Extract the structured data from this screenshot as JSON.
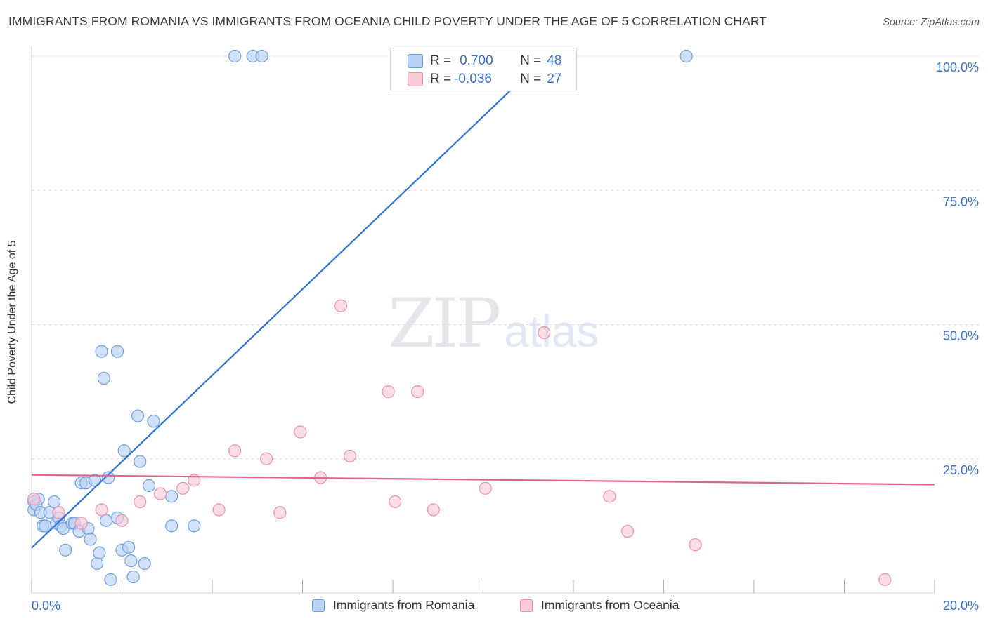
{
  "title": "IMMIGRANTS FROM ROMANIA VS IMMIGRANTS FROM OCEANIA CHILD POVERTY UNDER THE AGE OF 5 CORRELATION CHART",
  "source": "Source: ZipAtlas.com",
  "watermark": {
    "zip": "ZIP",
    "atlas": "atlas"
  },
  "stats": {
    "romania": {
      "r_label": "R =",
      "r_value": "0.700",
      "n_label": "N =",
      "n_value": "48"
    },
    "oceania": {
      "r_label": "R =",
      "r_value": "-0.036",
      "n_label": "N =",
      "n_value": "27"
    }
  },
  "colors": {
    "romania_fill": "#b8d2f4",
    "romania_stroke": "#6f9de0",
    "romania_line": "#2d74d6",
    "oceania_fill": "#f9cbd9",
    "oceania_stroke": "#ee8daf",
    "oceania_line": "#e0638f",
    "tick_text": "#3a72c9",
    "grid": "#d9d9e3"
  },
  "chart_data": {
    "type": "scatter",
    "title": "IMMIGRANTS FROM ROMANIA VS IMMIGRANTS FROM OCEANIA CHILD POVERTY UNDER THE AGE OF 5 CORRELATION CHART",
    "xlabel": "",
    "ylabel": "Child Poverty Under the Age of 5",
    "xlim": [
      0,
      20
    ],
    "ylim": [
      0,
      100
    ],
    "x_tick_labels": [
      "0.0%",
      "20.0%"
    ],
    "y_ticks": [
      25,
      50,
      75,
      100
    ],
    "y_tick_labels": [
      "25.0%",
      "50.0%",
      "75.0%",
      "100.0%"
    ],
    "legend": [
      "Immigrants from Romania",
      "Immigrants from Oceania"
    ],
    "series": [
      {
        "name": "Immigrants from Romania",
        "trend": {
          "x": [
            0,
            11.4
          ],
          "y": [
            8.4,
            100
          ]
        },
        "points": [
          {
            "x": 0.05,
            "y": 17.0
          },
          {
            "x": 0.05,
            "y": 15.5
          },
          {
            "x": 0.1,
            "y": 16.5
          },
          {
            "x": 0.15,
            "y": 17.5
          },
          {
            "x": 0.2,
            "y": 15.0
          },
          {
            "x": 0.25,
            "y": 12.5
          },
          {
            "x": 0.3,
            "y": 12.5
          },
          {
            "x": 0.4,
            "y": 15.0
          },
          {
            "x": 0.5,
            "y": 17.0
          },
          {
            "x": 0.55,
            "y": 13.0
          },
          {
            "x": 0.6,
            "y": 14.0
          },
          {
            "x": 0.65,
            "y": 12.5
          },
          {
            "x": 0.7,
            "y": 12.0
          },
          {
            "x": 0.75,
            "y": 8.0
          },
          {
            "x": 0.9,
            "y": 13.0
          },
          {
            "x": 0.95,
            "y": 13.0
          },
          {
            "x": 1.05,
            "y": 11.5
          },
          {
            "x": 1.1,
            "y": 20.5
          },
          {
            "x": 1.2,
            "y": 20.5
          },
          {
            "x": 1.25,
            "y": 12.0
          },
          {
            "x": 1.3,
            "y": 10.0
          },
          {
            "x": 1.4,
            "y": 21.0
          },
          {
            "x": 1.45,
            "y": 5.5
          },
          {
            "x": 1.5,
            "y": 7.5
          },
          {
            "x": 1.55,
            "y": 45.0
          },
          {
            "x": 1.6,
            "y": 40.0
          },
          {
            "x": 1.65,
            "y": 13.5
          },
          {
            "x": 1.7,
            "y": 21.5
          },
          {
            "x": 1.75,
            "y": 2.5
          },
          {
            "x": 1.9,
            "y": 45.0
          },
          {
            "x": 1.9,
            "y": 14.0
          },
          {
            "x": 2.0,
            "y": 8.0
          },
          {
            "x": 2.05,
            "y": 26.5
          },
          {
            "x": 2.15,
            "y": 8.5
          },
          {
            "x": 2.2,
            "y": 6.0
          },
          {
            "x": 2.25,
            "y": 3.0
          },
          {
            "x": 2.35,
            "y": 33.0
          },
          {
            "x": 2.4,
            "y": 24.5
          },
          {
            "x": 2.5,
            "y": 5.5
          },
          {
            "x": 2.6,
            "y": 20.0
          },
          {
            "x": 2.7,
            "y": 32.0
          },
          {
            "x": 3.1,
            "y": 18.0
          },
          {
            "x": 3.1,
            "y": 12.5
          },
          {
            "x": 3.6,
            "y": 12.5
          },
          {
            "x": 4.5,
            "y": 100
          },
          {
            "x": 4.9,
            "y": 100
          },
          {
            "x": 5.1,
            "y": 100
          },
          {
            "x": 14.5,
            "y": 100
          }
        ]
      },
      {
        "name": "Immigrants from Oceania",
        "trend": {
          "x": [
            0,
            20
          ],
          "y": [
            22.0,
            20.2
          ]
        },
        "points": [
          {
            "x": 0.05,
            "y": 17.5
          },
          {
            "x": 0.6,
            "y": 15.0
          },
          {
            "x": 1.1,
            "y": 13.0
          },
          {
            "x": 1.55,
            "y": 15.5
          },
          {
            "x": 2.0,
            "y": 13.5
          },
          {
            "x": 2.4,
            "y": 17.0
          },
          {
            "x": 2.85,
            "y": 18.5
          },
          {
            "x": 3.35,
            "y": 19.5
          },
          {
            "x": 3.6,
            "y": 21.0
          },
          {
            "x": 4.15,
            "y": 15.5
          },
          {
            "x": 4.5,
            "y": 26.5
          },
          {
            "x": 5.2,
            "y": 25.0
          },
          {
            "x": 5.5,
            "y": 15.0
          },
          {
            "x": 5.95,
            "y": 30.0
          },
          {
            "x": 6.4,
            "y": 21.5
          },
          {
            "x": 6.85,
            "y": 53.5
          },
          {
            "x": 7.05,
            "y": 25.5
          },
          {
            "x": 7.9,
            "y": 37.5
          },
          {
            "x": 8.05,
            "y": 17.0
          },
          {
            "x": 8.55,
            "y": 37.5
          },
          {
            "x": 8.9,
            "y": 15.5
          },
          {
            "x": 10.05,
            "y": 19.5
          },
          {
            "x": 11.35,
            "y": 48.5
          },
          {
            "x": 12.8,
            "y": 18.0
          },
          {
            "x": 13.2,
            "y": 11.5
          },
          {
            "x": 14.7,
            "y": 9.0
          },
          {
            "x": 18.9,
            "y": 2.5
          }
        ]
      }
    ]
  }
}
